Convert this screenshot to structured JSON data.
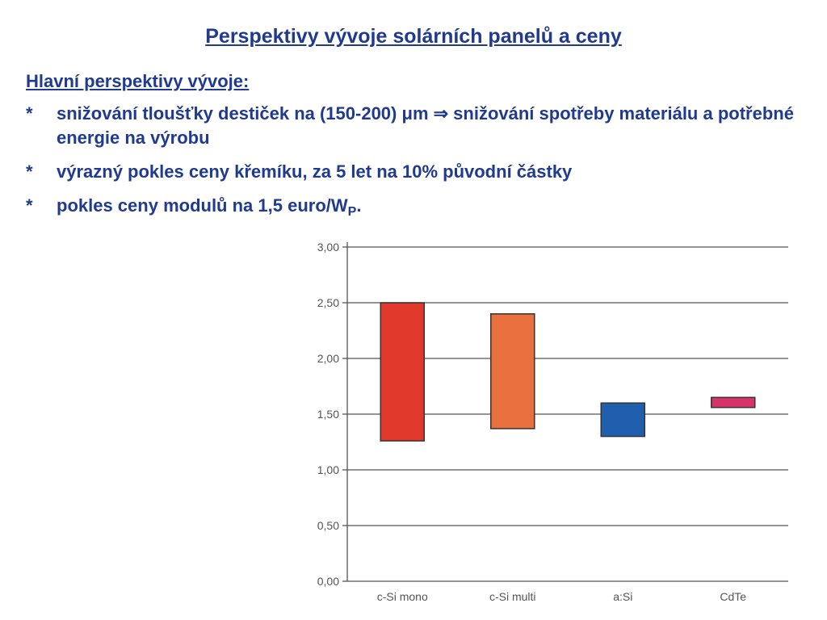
{
  "slide": {
    "title": "Perspektivy vývoje solárních panelů a ceny",
    "subheading": "Hlavní perspektivy vývoje:",
    "bullets": [
      {
        "marker": "*",
        "text": "snižování tloušťky destiček na (150-200) μm ⇒ snižování spotřeby materiálu a potřebné energie na výrobu"
      },
      {
        "marker": "*",
        "text": "výrazný pokles ceny křemíku, za 5 let na 10% původní částky"
      },
      {
        "marker": "*",
        "text": "pokles ceny modulů na 1,5 euro/W",
        "subscript": "P",
        "suffix": "."
      }
    ],
    "colors": {
      "text": "#1f3a8f"
    }
  },
  "chart_data": {
    "type": "bar",
    "subtype": "floating-range",
    "categories": [
      "c-Si mono",
      "c-Si multi",
      "a:Si",
      "CdTe"
    ],
    "ranges": [
      {
        "category": "c-Si mono",
        "low": 1.26,
        "high": 2.5,
        "color": "#e0392b"
      },
      {
        "category": "c-Si multi",
        "low": 1.37,
        "high": 2.4,
        "color": "#eb7040"
      },
      {
        "category": "a:Si",
        "low": 1.3,
        "high": 1.6,
        "color": "#1f5fae"
      },
      {
        "category": "CdTe",
        "low": 1.56,
        "high": 1.65,
        "color": "#d6336c"
      }
    ],
    "yticks": [
      "0,00",
      "0,50",
      "1,00",
      "1,50",
      "2,00",
      "2,50",
      "3,00"
    ],
    "ytick_values": [
      0,
      0.5,
      1.0,
      1.5,
      2.0,
      2.5,
      3.0
    ],
    "ylim": [
      0,
      3.0
    ],
    "grid": true,
    "title": "",
    "xlabel": "",
    "ylabel": ""
  }
}
